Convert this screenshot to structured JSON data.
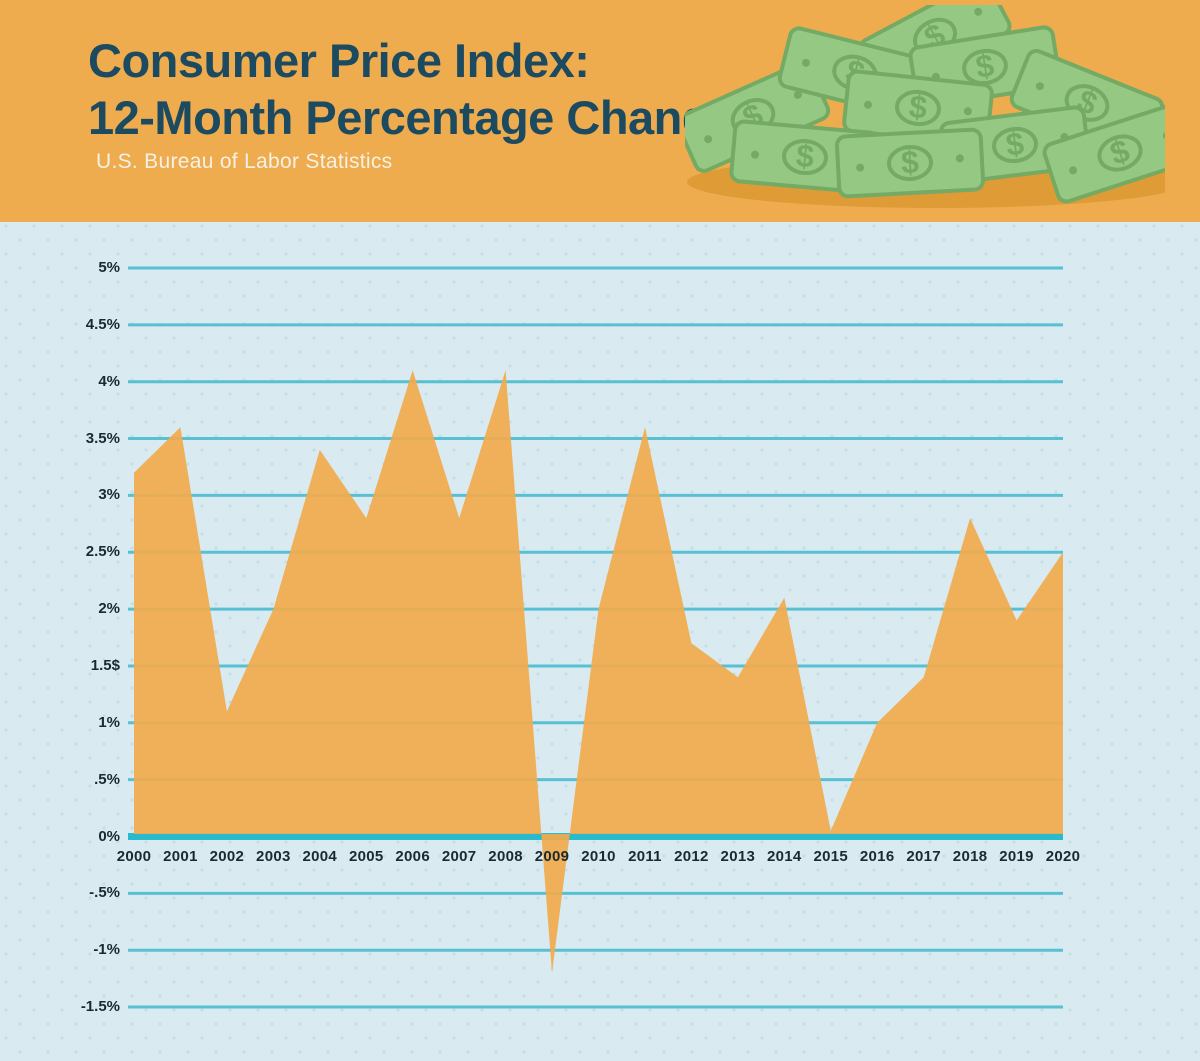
{
  "header": {
    "title_line1": "Consumer Price Index:",
    "title_line2": "12-Month Percentage Change",
    "subtitle": "U.S. Bureau of Labor Statistics"
  },
  "illustration": {
    "name": "pile-of-dollar-bills",
    "dollar_sign": "$",
    "bill_color": "#95C983",
    "bill_detail_color": "#74AA64",
    "shadow_color": "#DE9B36"
  },
  "colors": {
    "header_background": "#EEAC4F",
    "title": "#1C4A60",
    "subtitle": "#F5F1E4",
    "chart_background": "#D9EAF0",
    "background_dots": "#C7DEE6",
    "gridline": "#58C0D3",
    "zero_line": "#2ABACE",
    "area_fill": "#F0AB4E",
    "tick_label": "#1A2A33"
  },
  "chart_data": {
    "type": "area",
    "title": "Consumer Price Index: 12-Month Percentage Change",
    "source": "U.S. Bureau of Labor Statistics",
    "x": [
      2000,
      2001,
      2002,
      2003,
      2004,
      2005,
      2006,
      2007,
      2008,
      2009,
      2010,
      2011,
      2012,
      2013,
      2014,
      2015,
      2016,
      2017,
      2018,
      2019,
      2020
    ],
    "values": [
      3.2,
      3.6,
      1.1,
      2.0,
      3.4,
      2.8,
      4.1,
      2.8,
      4.1,
      -1.2,
      2.0,
      3.6,
      1.7,
      1.4,
      2.1,
      0.05,
      1.0,
      1.4,
      2.8,
      1.9,
      2.5
    ],
    "y_ticks": [
      {
        "label": "5%",
        "value": 5
      },
      {
        "label": "4.5%",
        "value": 4.5
      },
      {
        "label": "4%",
        "value": 4
      },
      {
        "label": "3.5%",
        "value": 3.5
      },
      {
        "label": "3%",
        "value": 3
      },
      {
        "label": "2.5%",
        "value": 2.5
      },
      {
        "label": "2%",
        "value": 2
      },
      {
        "label": "1.5$",
        "value": 1.5
      },
      {
        "label": "1%",
        "value": 1
      },
      {
        "label": ".5%",
        "value": 0.5
      },
      {
        "label": "0%",
        "value": 0
      },
      {
        "label": "-.5%",
        "value": -0.5
      },
      {
        "label": "-1%",
        "value": -1
      },
      {
        "label": "-1.5%",
        "value": -1.5
      }
    ],
    "ylim": [
      -1.75,
      5.4
    ],
    "xlabel": "",
    "ylabel": "",
    "grid": true,
    "legend": false
  }
}
